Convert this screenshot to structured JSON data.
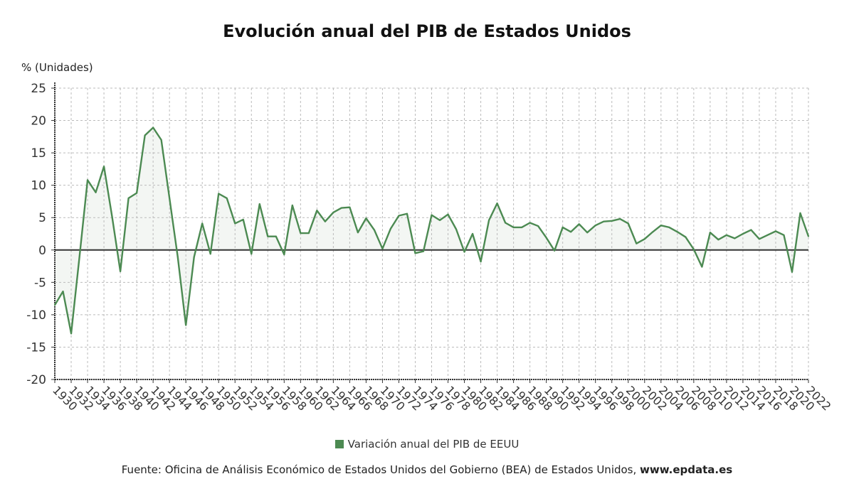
{
  "chart_data": {
    "type": "area",
    "title": "Evolución anual del PIB de Estados Unidos",
    "ylabel": "% (Unidades)",
    "xlabel": "",
    "ylim": [
      -20,
      25
    ],
    "yticks": [
      25,
      20,
      15,
      10,
      5,
      0,
      -5,
      -10,
      -15,
      -20
    ],
    "xlim": [
      1930,
      2022
    ],
    "xtick_step": 2,
    "grid": true,
    "legend_position": "bottom",
    "colors": {
      "line": "#4c8a52",
      "fill": "#f3f6f3",
      "zero_line": "#333333"
    },
    "series": [
      {
        "name": "Variación anual del PIB de EEUU",
        "x": [
          1930,
          1931,
          1932,
          1933,
          1934,
          1935,
          1936,
          1937,
          1938,
          1939,
          1940,
          1941,
          1942,
          1943,
          1944,
          1945,
          1946,
          1947,
          1948,
          1949,
          1950,
          1951,
          1952,
          1953,
          1954,
          1955,
          1956,
          1957,
          1958,
          1959,
          1960,
          1961,
          1962,
          1963,
          1964,
          1965,
          1966,
          1967,
          1968,
          1969,
          1970,
          1971,
          1972,
          1973,
          1974,
          1975,
          1976,
          1977,
          1978,
          1979,
          1980,
          1981,
          1982,
          1983,
          1984,
          1985,
          1986,
          1987,
          1988,
          1989,
          1990,
          1991,
          1992,
          1993,
          1994,
          1995,
          1996,
          1997,
          1998,
          1999,
          2000,
          2001,
          2002,
          2003,
          2004,
          2005,
          2006,
          2007,
          2008,
          2009,
          2010,
          2011,
          2012,
          2013,
          2014,
          2015,
          2016,
          2017,
          2018,
          2019,
          2020,
          2021,
          2022
        ],
        "values": [
          -8.5,
          -6.4,
          -12.9,
          -1.2,
          10.8,
          8.9,
          12.9,
          5.1,
          -3.3,
          8.0,
          8.8,
          17.7,
          18.9,
          17.0,
          8.0,
          -1.0,
          -11.6,
          -1.1,
          4.1,
          -0.6,
          8.7,
          8.0,
          4.1,
          4.7,
          -0.6,
          7.1,
          2.1,
          2.1,
          -0.7,
          6.9,
          2.6,
          2.6,
          6.1,
          4.4,
          5.8,
          6.5,
          6.6,
          2.7,
          4.9,
          3.1,
          0.2,
          3.3,
          5.3,
          5.6,
          -0.5,
          -0.2,
          5.4,
          4.6,
          5.5,
          3.2,
          -0.3,
          2.5,
          -1.8,
          4.6,
          7.2,
          4.2,
          3.5,
          3.5,
          4.2,
          3.7,
          1.9,
          -0.1,
          3.5,
          2.8,
          4.0,
          2.7,
          3.8,
          4.4,
          4.5,
          4.8,
          4.1,
          1.0,
          1.7,
          2.8,
          3.8,
          3.5,
          2.8,
          2.0,
          0.1,
          -2.6,
          2.7,
          1.6,
          2.3,
          1.8,
          2.5,
          3.1,
          1.7,
          2.3,
          2.9,
          2.3,
          -3.4,
          5.7,
          2.1
        ]
      }
    ]
  },
  "source": {
    "text": "Fuente: Oficina de Análisis Económico de Estados Unidos del Gobierno (BEA) de Estados Unidos, ",
    "site": "www.epdata.es"
  }
}
